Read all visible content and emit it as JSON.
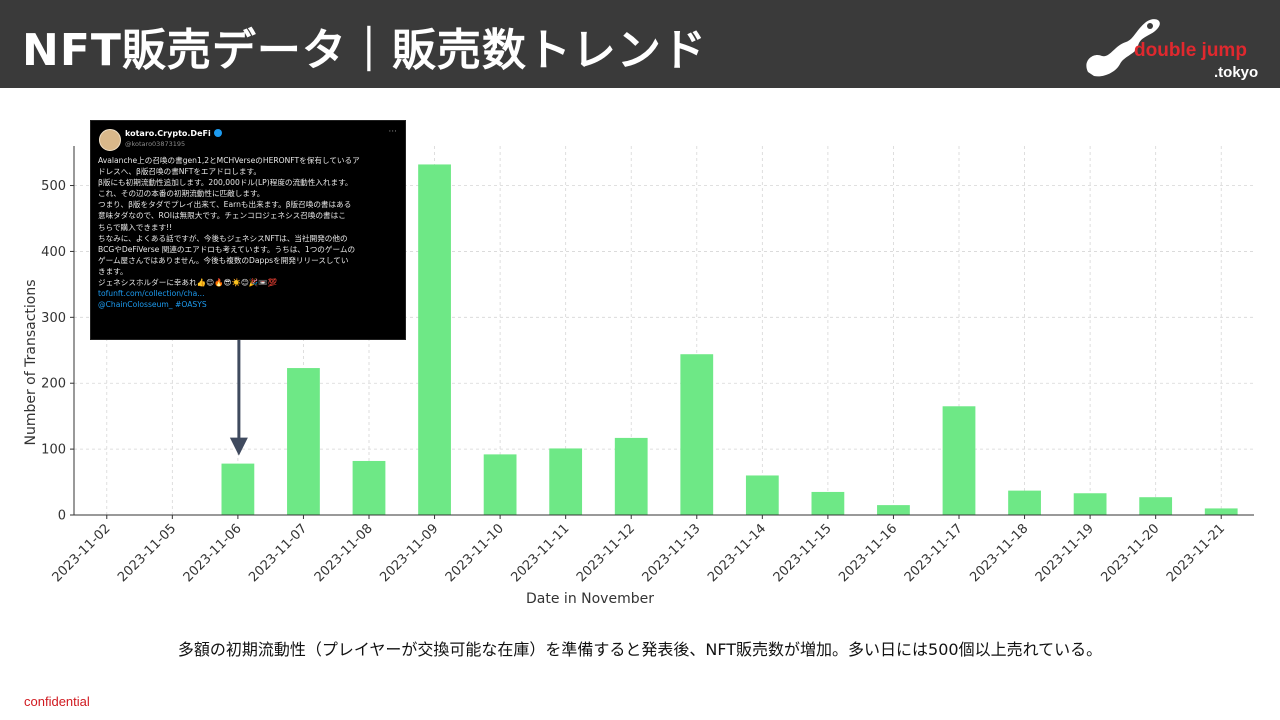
{
  "header": {
    "title": "NFT販売データ｜販売数トレンド"
  },
  "logo": {
    "line1": "double jump",
    "line2": ".tokyo"
  },
  "colors": {
    "header_bg": "#3a3a3a",
    "bar": "#6ee886",
    "arrow": "#3f4a5e",
    "logo_red": "#e0282e",
    "confidential": "#d0191f"
  },
  "chart_data": {
    "type": "bar",
    "categories": [
      "2023-11-02",
      "2023-11-05",
      "2023-11-06",
      "2023-11-07",
      "2023-11-08",
      "2023-11-09",
      "2023-11-10",
      "2023-11-11",
      "2023-11-12",
      "2023-11-13",
      "2023-11-14",
      "2023-11-15",
      "2023-11-16",
      "2023-11-17",
      "2023-11-18",
      "2023-11-19",
      "2023-11-20",
      "2023-11-21"
    ],
    "values": [
      0,
      0,
      78,
      223,
      82,
      532,
      92,
      101,
      117,
      244,
      60,
      35,
      15,
      165,
      37,
      33,
      27,
      10
    ],
    "xlabel": "Date in November",
    "ylabel": "Number of Transactions",
    "ylim": [
      0,
      560
    ],
    "yticks": [
      0,
      100,
      200,
      300,
      400,
      500
    ],
    "grid": true,
    "annotation_arrow_category": "2023-11-06"
  },
  "tweet": {
    "name": "kotaro.Crypto.DeFi",
    "handle": "@kotaro03873195",
    "lines": [
      "Avalanche上の召喚の書gen1,2とMCHVerseのHERONFTを保有しているア",
      "ドレスへ、β版召喚の書NFTをエアドロします。",
      "β版にも初期流動性追加します。200,000ドル(LP)程度の流動性入れます。",
      "これ、その辺の本番の初期流動性に匹敵します。",
      "つまり、β版をタダでプレイ出来て、Earnも出来ます。β版召喚の書はある",
      "意味タダなので、ROIは無限大です。チェンコロジェネシス召喚の書はこ",
      "ちらで購入できます!!",
      "ちなみに、よくある話ですが、今後もジェネシスNFTは、当社開発の他の",
      "BCGやDeFiVerse 関連のエアドロも考えています。うちは、1つのゲームの",
      "ゲーム屋さんではありません。今後も複数のDappsを開発リリースしてい",
      "きます。",
      "ジェネシスホルダーに幸あれ👍😊🔥😎☀️😊🎉📼💯"
    ],
    "link": "tofunft.com/collection/cha...",
    "tags": "@ChainColosseum_  #OASYS"
  },
  "caption": "多額の初期流動性（プレイヤーが交換可能な在庫）を準備すると発表後、NFT販売数が増加。多い日には500個以上売れている。",
  "footer": {
    "confidential": "confidential"
  }
}
